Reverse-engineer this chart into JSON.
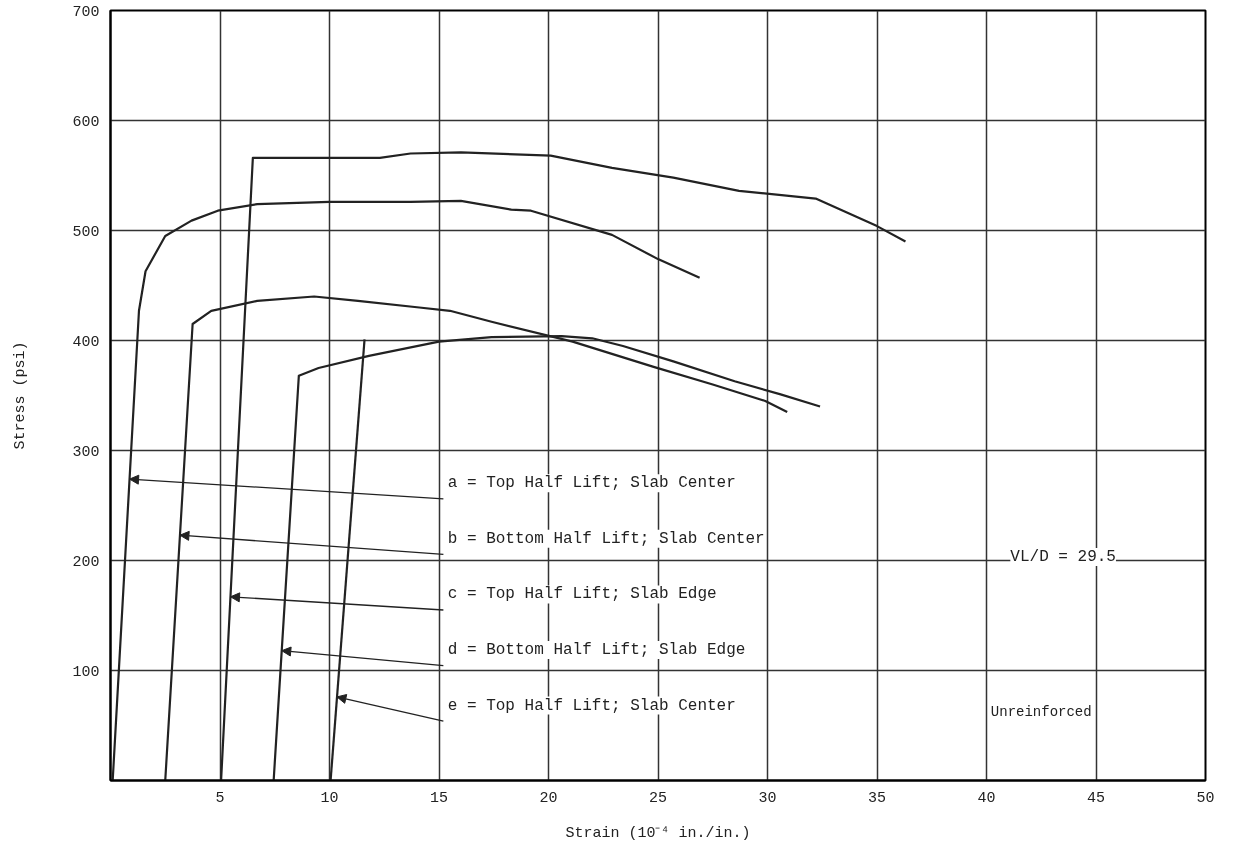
{
  "chart_data": {
    "type": "line",
    "xlabel": "Strain (10⁻⁴ in./in.)",
    "ylabel": "Stress (psi)",
    "xlim": [
      0,
      50
    ],
    "ylim": [
      0,
      700
    ],
    "xticks": [
      5,
      10,
      15,
      20,
      25,
      30,
      35,
      40,
      45,
      50
    ],
    "yticks": [
      100,
      200,
      300,
      400,
      500,
      600,
      700
    ],
    "grid": true,
    "marker": "none",
    "line_style": "solid",
    "series": [
      {
        "color": "#222222",
        "x": [
          0.1,
          1.3,
          1.6,
          2.5,
          3.7,
          4.9,
          6.7,
          10,
          13.7,
          16,
          18.3,
          19.2,
          22.9,
          25,
          26.9
        ],
        "values": [
          0,
          427,
          463,
          495,
          509,
          518,
          524,
          526,
          526,
          527,
          519,
          518,
          496,
          474,
          457
        ]
      },
      {
        "color": "#222222",
        "x": [
          2.5,
          3.75,
          4.6,
          6.7,
          9.3,
          11.3,
          14.1,
          15.5,
          17.4,
          21.1,
          24.8,
          27.5,
          29.9,
          30.9
        ],
        "values": [
          0,
          415,
          427,
          436,
          440,
          436,
          430,
          427,
          417,
          399,
          376,
          360,
          345,
          335
        ]
      },
      {
        "color": "#222222",
        "x": [
          5.05,
          6.5,
          12.3,
          13.7,
          16,
          20.1,
          22.9,
          25.7,
          28.7,
          32.2,
          35,
          36.3
        ],
        "values": [
          0,
          566,
          566,
          570,
          571,
          568,
          557,
          548,
          536,
          529,
          504,
          490
        ]
      },
      {
        "color": "#222222",
        "x": [
          7.45,
          8.6,
          9.5,
          11.8,
          15,
          17.4,
          20.6,
          22,
          23.4,
          25.7,
          28.5,
          30.6,
          32.4
        ],
        "values": [
          0,
          368,
          375,
          386,
          399,
          403,
          404,
          402,
          395,
          381,
          363,
          351,
          340
        ]
      },
      {
        "color": "#222222",
        "x": [
          10.05,
          11.6
        ],
        "values": [
          0,
          401
        ]
      }
    ],
    "annotations": [
      {
        "text": "a = Top Half Lift; Slab Center",
        "x": 0.87,
        "y": 274
      },
      {
        "text": "b = Bottom Half Lift; Slab Center",
        "x": 3.17,
        "y": 223
      },
      {
        "text": "c = Top Half Lift; Slab Edge",
        "x": 5.48,
        "y": 167
      },
      {
        "text": "d = Bottom Half Lift; Slab Edge",
        "x": 7.82,
        "y": 118
      },
      {
        "text": "e = Top Half Lift; Slab Center",
        "x": 10.34,
        "y": 76
      },
      "VL/D = 29.5",
      "Unreinforced"
    ]
  }
}
